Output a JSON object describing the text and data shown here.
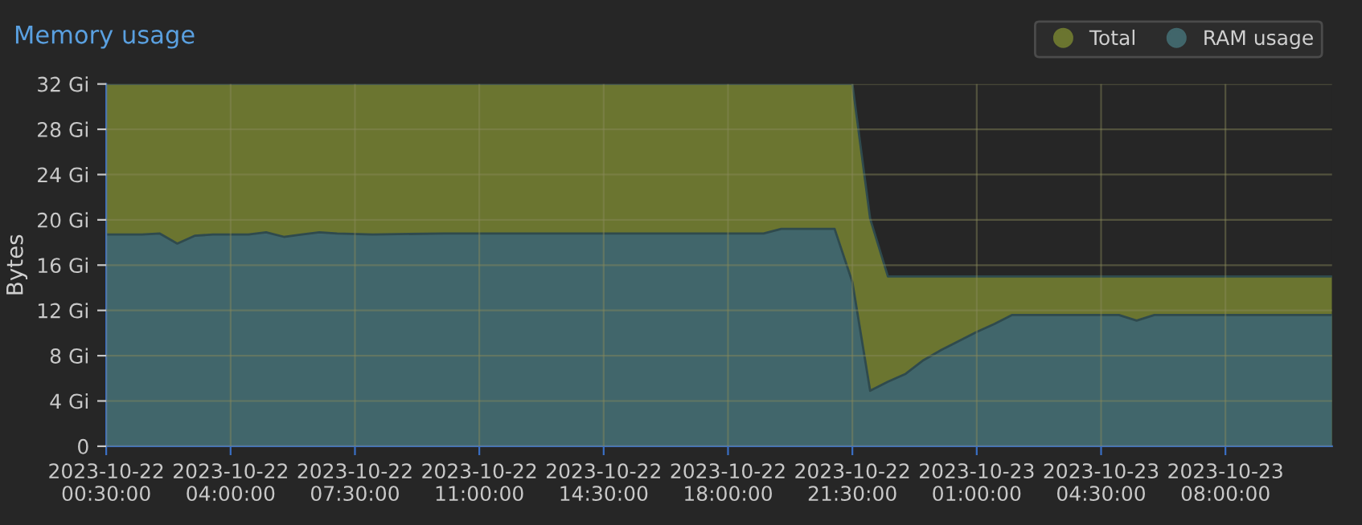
{
  "chart_data": {
    "type": "area",
    "title": "Memory usage",
    "ylabel": "Bytes",
    "xlim": [
      "2023-10-22T00:30",
      "2023-10-23T11:00"
    ],
    "xticks": [
      {
        "value": "2023-10-22T00:30",
        "label": "2023-10-22\n00:30:00"
      },
      {
        "value": "2023-10-22T04:00",
        "label": "2023-10-22\n04:00:00"
      },
      {
        "value": "2023-10-22T07:30",
        "label": "2023-10-22\n07:30:00"
      },
      {
        "value": "2023-10-22T11:00",
        "label": "2023-10-22\n11:00:00"
      },
      {
        "value": "2023-10-22T14:30",
        "label": "2023-10-22\n14:30:00"
      },
      {
        "value": "2023-10-22T18:00",
        "label": "2023-10-22\n18:00:00"
      },
      {
        "value": "2023-10-22T21:30",
        "label": "2023-10-22\n21:30:00"
      },
      {
        "value": "2023-10-23T01:00",
        "label": "2023-10-23\n01:00:00"
      },
      {
        "value": "2023-10-23T04:30",
        "label": "2023-10-23\n04:30:00"
      },
      {
        "value": "2023-10-23T08:00",
        "label": "2023-10-23\n08:00:00"
      }
    ],
    "ylim": [
      0,
      32
    ],
    "yticks": [
      0,
      {
        "value": 4,
        "label": "4 Gi"
      },
      {
        "value": 8,
        "label": "8 Gi"
      },
      {
        "value": 12,
        "label": "12 Gi"
      },
      {
        "value": 16,
        "label": "16 Gi"
      },
      {
        "value": 20,
        "label": "20 Gi"
      },
      {
        "value": 24,
        "label": "24 Gi"
      },
      {
        "value": 28,
        "label": "28 Gi"
      },
      {
        "value": 32,
        "label": "32 Gi"
      }
    ],
    "grid": true,
    "legend": "top right",
    "series": [
      {
        "name": "Total",
        "color": "#6b7530",
        "x": [
          "2023-10-22T00:30",
          "2023-10-22T21:30",
          "2023-10-22T22:00",
          "2023-10-22T22:30",
          "2023-10-23T11:00"
        ],
        "values": [
          32,
          32,
          20.1,
          15,
          15
        ]
      },
      {
        "name": "RAM usage",
        "color": "#41666b",
        "x": [
          "2023-10-22T00:30",
          "2023-10-22T01:30",
          "2023-10-22T02:00",
          "2023-10-22T02:30",
          "2023-10-22T03:00",
          "2023-10-22T03:30",
          "2023-10-22T04:00",
          "2023-10-22T04:30",
          "2023-10-22T05:00",
          "2023-10-22T05:30",
          "2023-10-22T06:00",
          "2023-10-22T06:30",
          "2023-10-22T07:00",
          "2023-10-22T08:00",
          "2023-10-22T10:00",
          "2023-10-22T13:00",
          "2023-10-22T16:00",
          "2023-10-22T19:00",
          "2023-10-22T19:30",
          "2023-10-22T21:00",
          "2023-10-22T21:30",
          "2023-10-22T22:00",
          "2023-10-22T22:30",
          "2023-10-22T23:00",
          "2023-10-22T23:30",
          "2023-10-23T00:00",
          "2023-10-23T00:30",
          "2023-10-23T01:00",
          "2023-10-23T01:30",
          "2023-10-23T02:00",
          "2023-10-23T05:00",
          "2023-10-23T05:30",
          "2023-10-23T06:00",
          "2023-10-23T11:00"
        ],
        "values": [
          18.7,
          18.7,
          18.8,
          17.9,
          18.6,
          18.7,
          18.7,
          18.7,
          18.9,
          18.5,
          18.7,
          18.9,
          18.8,
          18.7,
          18.8,
          18.8,
          18.8,
          18.8,
          19.2,
          19.2,
          14.5,
          4.9,
          5.7,
          6.4,
          7.6,
          8.5,
          9.3,
          10.1,
          10.8,
          11.6,
          11.6,
          11.1,
          11.6,
          11.6
        ]
      }
    ]
  }
}
